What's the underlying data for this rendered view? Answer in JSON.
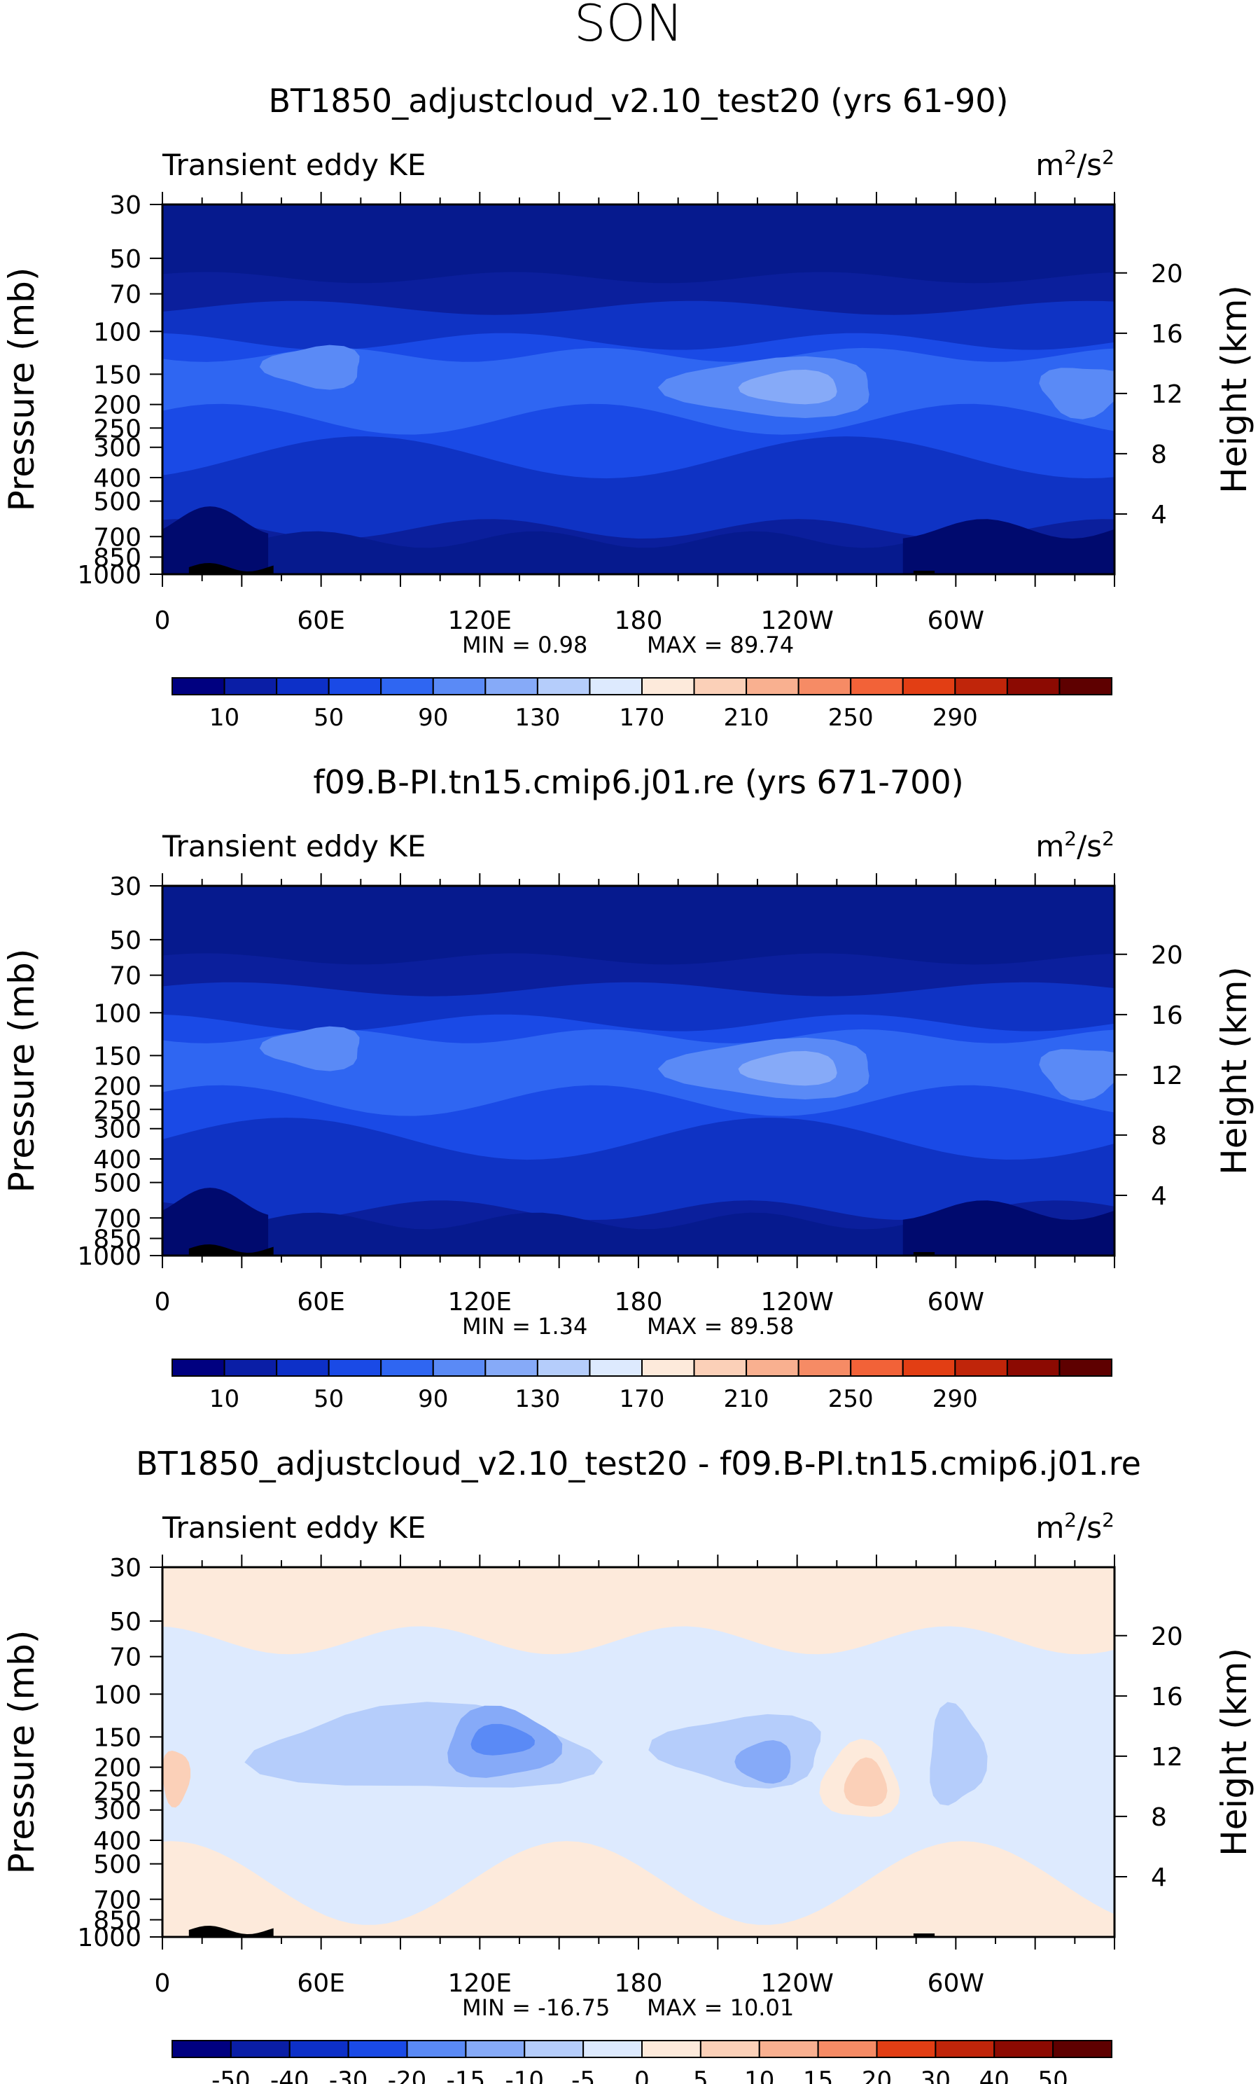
{
  "page_title": "SON",
  "colors": {
    "abs_scale": [
      "#000080",
      "#0a1ea6",
      "#0d30c8",
      "#1a4ae6",
      "#2f66f2",
      "#5a8af6",
      "#86aaf8",
      "#b5cdfb",
      "#ddeafe",
      "#fdeadb",
      "#fbd0b8",
      "#f9b090",
      "#f68b65",
      "#f26238",
      "#e23e14",
      "#c0250a",
      "#8c0a02",
      "#5e0000"
    ],
    "diff_scale": [
      "#000080",
      "#0a1ea6",
      "#0d30c8",
      "#1a4ae6",
      "#2f66f2",
      "#5a8af6",
      "#86aaf8",
      "#b5cdfb",
      "#ddeafe",
      "#fdeadb",
      "#fbd0b8",
      "#f9b090",
      "#f68b65",
      "#f26238",
      "#e23e14",
      "#c0250a",
      "#8c0a02",
      "#5e0000"
    ]
  },
  "chart_data": [
    {
      "type": "heatmap",
      "title": "BT1850_adjustcloud_v2.10_test20 (yrs 61-90)",
      "left_label": "Transient eddy KE",
      "units_base": "m",
      "units_sup1": "2",
      "units_mid": "/s",
      "units_sup2": "2",
      "ylabel": "Pressure (mb)",
      "ylabel_right": "Height (km)",
      "x_ticks": [
        "0",
        "60E",
        "120E",
        "180",
        "120W",
        "60W"
      ],
      "x_tick_values": [
        0,
        60,
        120,
        180,
        240,
        300
      ],
      "xlim": [
        0,
        360
      ],
      "y_ticks": [
        "30",
        "50",
        "70",
        "100",
        "150",
        "200",
        "250",
        "300",
        "400",
        "500",
        "700",
        "850",
        "1000"
      ],
      "y_tick_values": [
        30,
        50,
        70,
        100,
        150,
        200,
        250,
        300,
        400,
        500,
        700,
        850,
        1000
      ],
      "ylim": [
        1000,
        30
      ],
      "height_ticks": [
        "20",
        "16",
        "12",
        "8",
        "4"
      ],
      "height_tick_values": [
        20,
        16,
        12,
        8,
        4
      ],
      "min_text": "MIN =    0.98",
      "max_text": "MAX =   89.74",
      "colorbar_labels": [
        "10",
        "50",
        "90",
        "130",
        "170",
        "210",
        "250",
        "290"
      ],
      "colorbar_levels": 18
    },
    {
      "type": "heatmap",
      "title": "f09.B-PI.tn15.cmip6.j01.re (yrs 671-700)",
      "left_label": "Transient eddy KE",
      "units_base": "m",
      "units_sup1": "2",
      "units_mid": "/s",
      "units_sup2": "2",
      "ylabel": "Pressure (mb)",
      "ylabel_right": "Height (km)",
      "x_ticks": [
        "0",
        "60E",
        "120E",
        "180",
        "120W",
        "60W"
      ],
      "x_tick_values": [
        0,
        60,
        120,
        180,
        240,
        300
      ],
      "xlim": [
        0,
        360
      ],
      "y_ticks": [
        "30",
        "50",
        "70",
        "100",
        "150",
        "200",
        "250",
        "300",
        "400",
        "500",
        "700",
        "850",
        "1000"
      ],
      "y_tick_values": [
        30,
        50,
        70,
        100,
        150,
        200,
        250,
        300,
        400,
        500,
        700,
        850,
        1000
      ],
      "ylim": [
        1000,
        30
      ],
      "height_ticks": [
        "20",
        "16",
        "12",
        "8",
        "4"
      ],
      "height_tick_values": [
        20,
        16,
        12,
        8,
        4
      ],
      "min_text": "MIN =    1.34",
      "max_text": "MAX =   89.58",
      "colorbar_labels": [
        "10",
        "50",
        "90",
        "130",
        "170",
        "210",
        "250",
        "290"
      ],
      "colorbar_levels": 18
    },
    {
      "type": "heatmap",
      "title": "BT1850_adjustcloud_v2.10_test20 - f09.B-PI.tn15.cmip6.j01.re",
      "left_label": "Transient eddy KE",
      "units_base": "m",
      "units_sup1": "2",
      "units_mid": "/s",
      "units_sup2": "2",
      "ylabel": "Pressure (mb)",
      "ylabel_right": "Height (km)",
      "x_ticks": [
        "0",
        "60E",
        "120E",
        "180",
        "120W",
        "60W"
      ],
      "x_tick_values": [
        0,
        60,
        120,
        180,
        240,
        300
      ],
      "xlim": [
        0,
        360
      ],
      "y_ticks": [
        "30",
        "50",
        "70",
        "100",
        "150",
        "200",
        "250",
        "300",
        "400",
        "500",
        "700",
        "850",
        "1000"
      ],
      "y_tick_values": [
        30,
        50,
        70,
        100,
        150,
        200,
        250,
        300,
        400,
        500,
        700,
        850,
        1000
      ],
      "ylim": [
        1000,
        30
      ],
      "height_ticks": [
        "20",
        "16",
        "12",
        "8",
        "4"
      ],
      "height_tick_values": [
        20,
        16,
        12,
        8,
        4
      ],
      "min_text": "MIN = -16.75",
      "max_text": "MAX =   10.01",
      "colorbar_labels": [
        "-50",
        "-40",
        "-30",
        "-20",
        "-15",
        "-10",
        "-5",
        "0",
        "5",
        "10",
        "15",
        "20",
        "30",
        "40",
        "50"
      ],
      "colorbar_levels": 16
    }
  ]
}
